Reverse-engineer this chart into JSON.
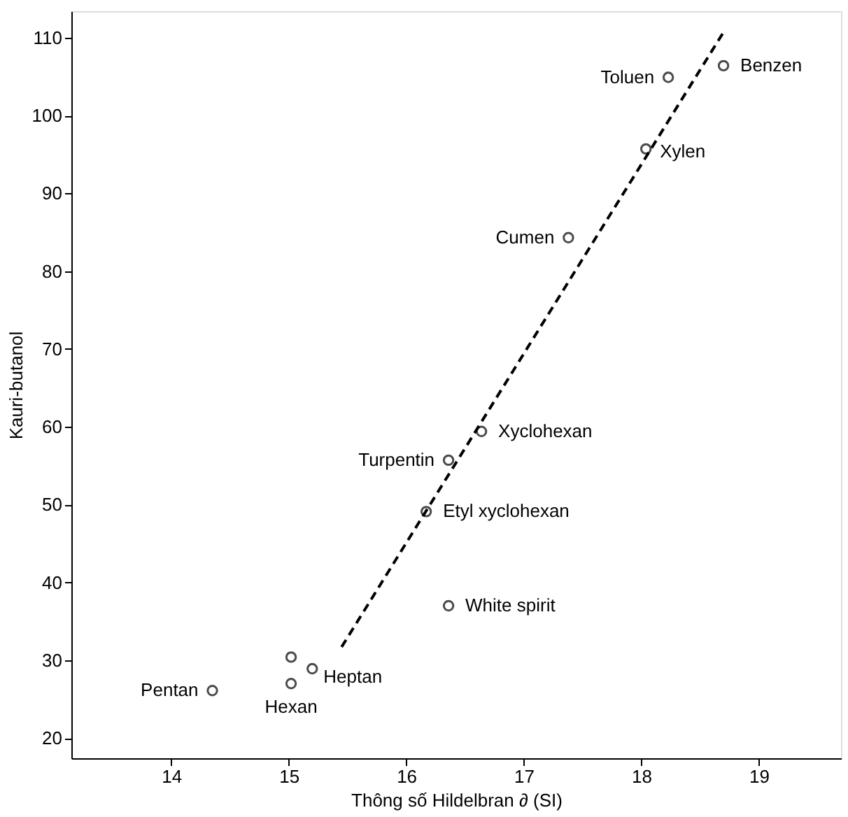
{
  "chart_data": {
    "type": "scatter",
    "xlabel": "Thông số Hildelbran ∂ (SI)",
    "ylabel": "Kauri-butanol",
    "xlim": [
      13.15,
      19.7
    ],
    "ylim": [
      17.4,
      113.4
    ],
    "xticks": [
      14,
      15,
      16,
      17,
      18,
      19
    ],
    "yticks": [
      20,
      30,
      40,
      50,
      60,
      70,
      80,
      90,
      100,
      110
    ],
    "grid": false,
    "series": [
      {
        "color": "#000000",
        "marker": "circle",
        "x": [
          18.7,
          18.23,
          18.04,
          17.38,
          16.64,
          16.36,
          16.17,
          16.36,
          15.02,
          15.2,
          15.02,
          14.35
        ],
        "values": [
          106.4,
          104.9,
          95.7,
          84.3,
          59.4,
          55.7,
          49.1,
          37.0,
          30.4,
          28.9,
          27.0,
          26.1
        ]
      },
      {
        "type": "line",
        "color": "#000000",
        "line_style": "dashed",
        "marker": "none",
        "x": [
          15.45,
          18.7
        ],
        "values": [
          31.7,
          110.7
        ]
      }
    ],
    "annotations": [
      {
        "text": "Benzen",
        "x": 18.7,
        "y": 106.4
      },
      {
        "text": "Toluen",
        "x": 18.23,
        "y": 104.9
      },
      {
        "text": "Xylen",
        "x": 18.04,
        "y": 95.7
      },
      {
        "text": "Cumen",
        "x": 17.38,
        "y": 84.3
      },
      {
        "text": "Xyclohexan",
        "x": 16.64,
        "y": 59.4
      },
      {
        "text": "Turpentin",
        "x": 16.36,
        "y": 55.7
      },
      {
        "text": "Etyl xyclohexan",
        "x": 16.17,
        "y": 49.1
      },
      {
        "text": "White spirit",
        "x": 16.36,
        "y": 37.0
      },
      {
        "text": "Heptan",
        "x": 15.2,
        "y": 28.9
      },
      {
        "text": "Hexan",
        "x": 15.02,
        "y": 27.0
      },
      {
        "text": "Pentan",
        "x": 14.35,
        "y": 26.1
      }
    ]
  }
}
